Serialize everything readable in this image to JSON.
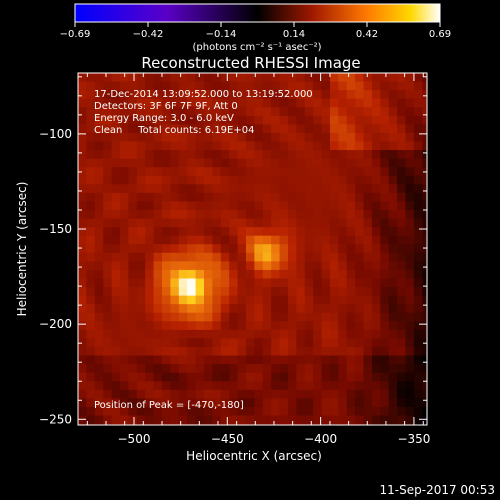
{
  "colorbar": {
    "ticks": [
      "−0.69",
      "−0.42",
      "−0.14",
      "0.14",
      "0.42",
      "0.69"
    ],
    "units": "(photons cm⁻² s⁻¹ asec⁻²)"
  },
  "chart_data": {
    "type": "heatmap",
    "title": "Reconstructed RHESSI Image",
    "xlabel": "Heliocentric X (arcsec)",
    "ylabel": "Heliocentric Y (arcsec)",
    "xlim": [
      -530,
      -343
    ],
    "ylim": [
      -253,
      -68
    ],
    "x_ticks": [
      -500,
      -450,
      -400,
      -350
    ],
    "y_ticks": [
      -100,
      -150,
      -200,
      -250
    ],
    "x_tick_labels": [
      "−500",
      "−450",
      "−400",
      "−350"
    ],
    "y_tick_labels": [
      "−100",
      "−150",
      "−200",
      "−250"
    ],
    "color_range": [
      -0.69,
      0.69
    ],
    "colormap": "red-temperature",
    "sources": [
      {
        "x": -470,
        "y": -180,
        "peak": 0.69
      },
      {
        "x": -428,
        "y": -162,
        "peak": 0.46
      }
    ],
    "annotations": [
      "17-Dec-2014 13:09:52.000 to 13:19:52.000",
      "Detectors: 3F 6F 7F 9F, Att 0",
      "Energy Range: 3.0 - 6.0 keV",
      "Clean     Total counts: 6.19E+04"
    ],
    "peak_label": "Position of Peak = [-470,-180]"
  },
  "footer": {
    "timestamp": "11-Sep-2017 00:53"
  }
}
